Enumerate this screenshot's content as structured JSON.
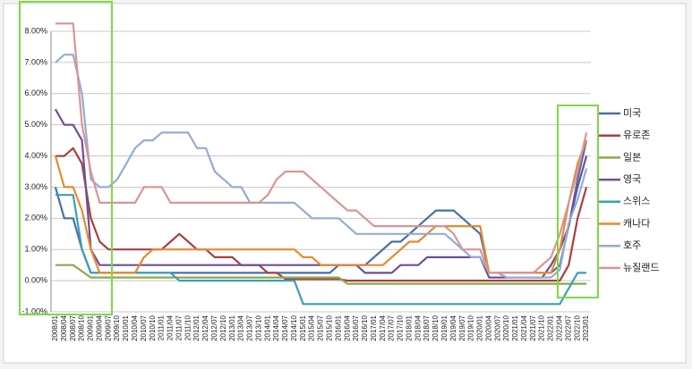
{
  "chart_data": {
    "type": "line",
    "categories": [
      "2008/01",
      "2008/04",
      "2008/07",
      "2008/10",
      "2009/01",
      "2009/04",
      "2009/07",
      "2009/10",
      "2010/01",
      "2010/04",
      "2010/07",
      "2010/10",
      "2011/01",
      "2011/04",
      "2011/07",
      "2011/10",
      "2012/01",
      "2012/04",
      "2012/07",
      "2012/10",
      "2013/01",
      "2013/04",
      "2013/07",
      "2013/10",
      "2014/01",
      "2014/04",
      "2014/07",
      "2014/10",
      "2015/01",
      "2015/04",
      "2015/07",
      "2015/10",
      "2016/01",
      "2016/04",
      "2016/07",
      "2016/10",
      "2017/01",
      "2017/04",
      "2017/07",
      "2017/10",
      "2018/01",
      "2018/04",
      "2018/07",
      "2018/10",
      "2019/01",
      "2019/04",
      "2019/07",
      "2019/10",
      "2020/01",
      "2020/04",
      "2020/07",
      "2020/10",
      "2021/01",
      "2021/04",
      "2021/07",
      "2021/10",
      "2022/01",
      "2022/04",
      "2022/07",
      "2022/10",
      "2023/01"
    ],
    "series": [
      {
        "name": "미국",
        "color": "#4a6fa5",
        "values": [
          3.0,
          2.0,
          2.0,
          1.0,
          0.25,
          0.25,
          0.25,
          0.25,
          0.25,
          0.25,
          0.25,
          0.25,
          0.25,
          0.25,
          0.25,
          0.25,
          0.25,
          0.25,
          0.25,
          0.25,
          0.25,
          0.25,
          0.25,
          0.25,
          0.25,
          0.25,
          0.25,
          0.25,
          0.25,
          0.25,
          0.25,
          0.25,
          0.5,
          0.5,
          0.5,
          0.5,
          0.75,
          1.0,
          1.25,
          1.25,
          1.5,
          1.75,
          2.0,
          2.25,
          2.25,
          2.25,
          2.0,
          1.75,
          1.5,
          0.25,
          0.25,
          0.25,
          0.25,
          0.25,
          0.25,
          0.25,
          0.25,
          0.5,
          1.75,
          3.25,
          4.5
        ]
      },
      {
        "name": "유로존",
        "color": "#a84040",
        "values": [
          4.0,
          4.0,
          4.25,
          3.75,
          2.0,
          1.25,
          1.0,
          1.0,
          1.0,
          1.0,
          1.0,
          1.0,
          1.0,
          1.25,
          1.5,
          1.25,
          1.0,
          1.0,
          0.75,
          0.75,
          0.75,
          0.5,
          0.5,
          0.5,
          0.25,
          0.25,
          0.05,
          0.05,
          0.05,
          0.05,
          0.05,
          0.05,
          0.05,
          0,
          0,
          0,
          0,
          0,
          0,
          0,
          0,
          0,
          0,
          0,
          0,
          0,
          0,
          0,
          0,
          0,
          0,
          0,
          0,
          0,
          0,
          0,
          0,
          0,
          0.5,
          2.0,
          3.0
        ]
      },
      {
        "name": "일본",
        "color": "#8aa84a",
        "values": [
          0.5,
          0.5,
          0.5,
          0.3,
          0.1,
          0.1,
          0.1,
          0.1,
          0.1,
          0.1,
          0.1,
          0.1,
          0.1,
          0.1,
          0.1,
          0.1,
          0.1,
          0.1,
          0.1,
          0.1,
          0.1,
          0.1,
          0.1,
          0.1,
          0.1,
          0.1,
          0.1,
          0.1,
          0.1,
          0.1,
          0.1,
          0.1,
          0.1,
          -0.1,
          -0.1,
          -0.1,
          -0.1,
          -0.1,
          -0.1,
          -0.1,
          -0.1,
          -0.1,
          -0.1,
          -0.1,
          -0.1,
          -0.1,
          -0.1,
          -0.1,
          -0.1,
          -0.1,
          -0.1,
          -0.1,
          -0.1,
          -0.1,
          -0.1,
          -0.1,
          -0.1,
          -0.1,
          -0.1,
          -0.1,
          -0.1
        ]
      },
      {
        "name": "영국",
        "color": "#6f4f96",
        "values": [
          5.5,
          5.0,
          5.0,
          4.5,
          1.0,
          0.5,
          0.5,
          0.5,
          0.5,
          0.5,
          0.5,
          0.5,
          0.5,
          0.5,
          0.5,
          0.5,
          0.5,
          0.5,
          0.5,
          0.5,
          0.5,
          0.5,
          0.5,
          0.5,
          0.5,
          0.5,
          0.5,
          0.5,
          0.5,
          0.5,
          0.5,
          0.5,
          0.5,
          0.5,
          0.5,
          0.25,
          0.25,
          0.25,
          0.25,
          0.5,
          0.5,
          0.5,
          0.75,
          0.75,
          0.75,
          0.75,
          0.75,
          0.75,
          0.75,
          0.1,
          0.1,
          0.1,
          0.1,
          0.1,
          0.1,
          0.1,
          0.5,
          1.0,
          1.75,
          3.0,
          4.0
        ]
      },
      {
        "name": "스위스",
        "color": "#3d9fb5",
        "values": [
          2.75,
          2.75,
          2.75,
          1.0,
          0.25,
          0.25,
          0.25,
          0.25,
          0.25,
          0.25,
          0.25,
          0.25,
          0.25,
          0.25,
          0,
          0,
          0,
          0,
          0,
          0,
          0,
          0,
          0,
          0,
          0,
          0,
          0,
          0,
          -0.75,
          -0.75,
          -0.75,
          -0.75,
          -0.75,
          -0.75,
          -0.75,
          -0.75,
          -0.75,
          -0.75,
          -0.75,
          -0.75,
          -0.75,
          -0.75,
          -0.75,
          -0.75,
          -0.75,
          -0.75,
          -0.75,
          -0.75,
          -0.75,
          -0.75,
          -0.75,
          -0.75,
          -0.75,
          -0.75,
          -0.75,
          -0.75,
          -0.75,
          -0.75,
          -0.25,
          0.25,
          0.25
        ]
      },
      {
        "name": "캐나다",
        "color": "#e8892f",
        "values": [
          4.0,
          3.0,
          3.0,
          2.25,
          1.0,
          0.25,
          0.25,
          0.25,
          0.25,
          0.25,
          0.75,
          1.0,
          1.0,
          1.0,
          1.0,
          1.0,
          1.0,
          1.0,
          1.0,
          1.0,
          1.0,
          1.0,
          1.0,
          1.0,
          1.0,
          1.0,
          1.0,
          1.0,
          0.75,
          0.75,
          0.5,
          0.5,
          0.5,
          0.5,
          0.5,
          0.5,
          0.5,
          0.5,
          0.75,
          1.0,
          1.25,
          1.25,
          1.5,
          1.75,
          1.75,
          1.75,
          1.75,
          1.75,
          1.75,
          0.25,
          0.25,
          0.25,
          0.25,
          0.25,
          0.25,
          0.25,
          0.25,
          1.0,
          2.5,
          3.75,
          4.5
        ]
      },
      {
        "name": "호주",
        "color": "#93acd4",
        "values": [
          7.0,
          7.25,
          7.25,
          6.0,
          3.25,
          3.0,
          3.0,
          3.25,
          3.75,
          4.25,
          4.5,
          4.5,
          4.75,
          4.75,
          4.75,
          4.75,
          4.25,
          4.25,
          3.5,
          3.25,
          3.0,
          3.0,
          2.5,
          2.5,
          2.5,
          2.5,
          2.5,
          2.5,
          2.25,
          2.0,
          2.0,
          2.0,
          2.0,
          1.75,
          1.5,
          1.5,
          1.5,
          1.5,
          1.5,
          1.5,
          1.5,
          1.5,
          1.5,
          1.5,
          1.5,
          1.25,
          1.0,
          0.75,
          0.75,
          0.25,
          0.25,
          0.1,
          0.1,
          0.1,
          0.1,
          0.1,
          0.1,
          0.35,
          1.85,
          2.6,
          3.6
        ]
      },
      {
        "name": "뉴질랜드",
        "color": "#d99594",
        "values": [
          8.25,
          8.25,
          8.25,
          5.0,
          3.5,
          2.5,
          2.5,
          2.5,
          2.5,
          2.5,
          3.0,
          3.0,
          3.0,
          2.5,
          2.5,
          2.5,
          2.5,
          2.5,
          2.5,
          2.5,
          2.5,
          2.5,
          2.5,
          2.5,
          2.75,
          3.25,
          3.5,
          3.5,
          3.5,
          3.25,
          3.0,
          2.75,
          2.5,
          2.25,
          2.25,
          2.0,
          1.75,
          1.75,
          1.75,
          1.75,
          1.75,
          1.75,
          1.75,
          1.75,
          1.75,
          1.5,
          1.0,
          1.0,
          1.0,
          0.25,
          0.25,
          0.25,
          0.25,
          0.25,
          0.25,
          0.5,
          0.75,
          1.5,
          2.5,
          3.5,
          4.75
        ]
      }
    ],
    "ylim": [
      -1,
      8
    ],
    "yticks": [
      {
        "value": -1,
        "label": "-1.00%"
      },
      {
        "value": 0,
        "label": "0.00%"
      },
      {
        "value": 1,
        "label": "1.00%"
      },
      {
        "value": 2,
        "label": "2.00%"
      },
      {
        "value": 3,
        "label": "3.00%"
      },
      {
        "value": 4,
        "label": "4.00%"
      },
      {
        "value": 5,
        "label": "5.00%"
      },
      {
        "value": 6,
        "label": "6.00%"
      },
      {
        "value": 7,
        "label": "7.00%"
      },
      {
        "value": 8,
        "label": "8.00%"
      }
    ],
    "grid": true,
    "legend": "right"
  }
}
